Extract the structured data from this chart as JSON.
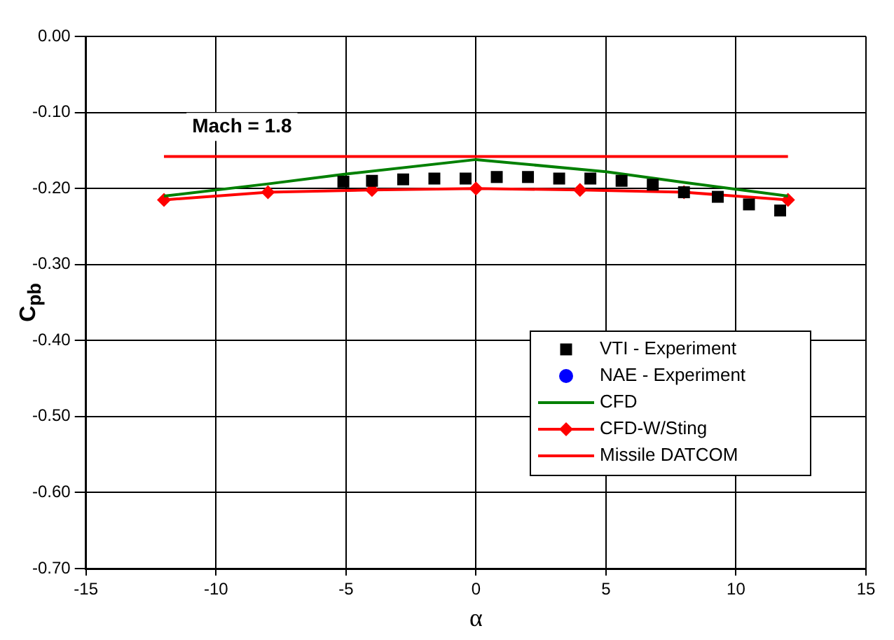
{
  "chart_data": {
    "type": "line",
    "xlabel": "α",
    "ylabel": "C$_{pb}$",
    "xlim": [
      -15,
      15
    ],
    "xticks": [
      -15,
      -10,
      -5,
      0,
      5,
      10,
      15
    ],
    "ylim": [
      -0.7,
      0
    ],
    "yticks": [
      {
        "value": 0,
        "label": "0.00"
      },
      {
        "value": -0.1,
        "label": "-0.10"
      },
      {
        "value": -0.2,
        "label": "-0.20"
      },
      {
        "value": -0.3,
        "label": "-0.30"
      },
      {
        "value": -0.4,
        "label": "-0.40"
      },
      {
        "value": -0.5,
        "label": "-0.50"
      },
      {
        "value": -0.6,
        "label": "-0.60"
      },
      {
        "value": -0.7,
        "label": "-0.70"
      }
    ],
    "grid": true,
    "legend": "bottom right",
    "annotations": [
      "Mach = 1.8"
    ],
    "series": [
      {
        "name": "VTI - Experiment",
        "type": "scatter",
        "marker": "square",
        "color": "#000000",
        "x": [
          -5.1,
          -4.0,
          -2.8,
          -1.6,
          -0.4,
          0.8,
          2.0,
          3.2,
          4.4,
          5.6,
          6.8,
          8.0,
          9.3,
          10.5,
          11.7
        ],
        "values": [
          -0.191,
          -0.19,
          -0.188,
          -0.187,
          -0.187,
          -0.185,
          -0.185,
          -0.187,
          -0.187,
          -0.19,
          -0.195,
          -0.205,
          -0.211,
          -0.221,
          -0.229
        ]
      },
      {
        "name": "NAE - Experiment",
        "type": "scatter",
        "marker": "circle",
        "color": "#0000ff"
      },
      {
        "name": "CFD",
        "type": "line",
        "marker": "none",
        "color": "#008000",
        "x": [
          -12,
          -8,
          -5,
          0,
          5,
          8,
          12
        ],
        "values": [
          -0.21,
          -0.194,
          -0.181,
          -0.162,
          -0.178,
          -0.192,
          -0.21
        ]
      },
      {
        "name": "CFD-W/Sting",
        "type": "line",
        "marker": "diamond",
        "color": "#ff0000",
        "x": [
          -12,
          -8,
          -4,
          0,
          4,
          8,
          12
        ],
        "values": [
          -0.215,
          -0.205,
          -0.202,
          -0.2,
          -0.202,
          -0.205,
          -0.215
        ]
      },
      {
        "name": "Missile DATCOM",
        "type": "line",
        "marker": "none",
        "color": "#ff0000",
        "x": [
          -12,
          -8,
          -4,
          0,
          4,
          8,
          12
        ],
        "values": [
          -0.158,
          -0.158,
          -0.158,
          -0.158,
          -0.158,
          -0.158,
          -0.158
        ]
      }
    ]
  }
}
